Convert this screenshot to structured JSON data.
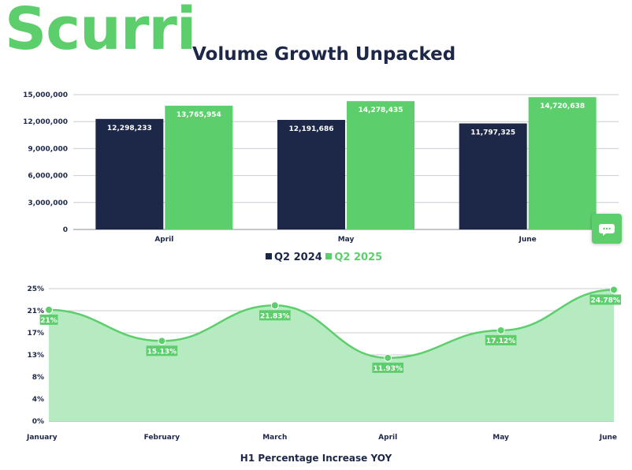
{
  "logo": "Scurri",
  "title": "Volume Growth Unpacked",
  "colors": {
    "navy": "#1d2747",
    "green": "#5ccf6c",
    "green_fill": "#b6eac0",
    "grid": "#c8cbd2"
  },
  "chart_data": [
    {
      "type": "bar",
      "categories": [
        "April",
        "May",
        "June"
      ],
      "series": [
        {
          "name": "Q2 2024",
          "color": "#1d2747",
          "values": [
            12298233,
            12191686,
            11797325
          ],
          "labels": [
            "12,298,233",
            "12,191,686",
            "11,797,325"
          ]
        },
        {
          "name": "Q2 2025",
          "color": "#5ccf6c",
          "values": [
            13765954,
            14278435,
            14720638
          ],
          "labels": [
            "13,765,954",
            "14,278,435",
            "14,720,638"
          ]
        }
      ],
      "ylim": [
        0,
        15000000
      ],
      "yticks": [
        "0",
        "3,000,000",
        "6,000,000",
        "9,000,000",
        "12,000,000",
        "15,000,000"
      ],
      "grid": true,
      "legend": "bottom-center"
    },
    {
      "type": "area",
      "title": "H1 Percentage Increase YOY",
      "categories": [
        "January",
        "February",
        "March",
        "April",
        "May",
        "June"
      ],
      "values": [
        21,
        15.13,
        21.83,
        11.93,
        17.12,
        24.78
      ],
      "labels": [
        "21%",
        "15.13%",
        "21.83%",
        "11.93%",
        "17.12%",
        "24.78%"
      ],
      "ylim": [
        0,
        25
      ],
      "yticks": [
        "0%",
        "4%",
        "8%",
        "13%",
        "17%",
        "21%",
        "25%"
      ],
      "grid": true
    }
  ]
}
